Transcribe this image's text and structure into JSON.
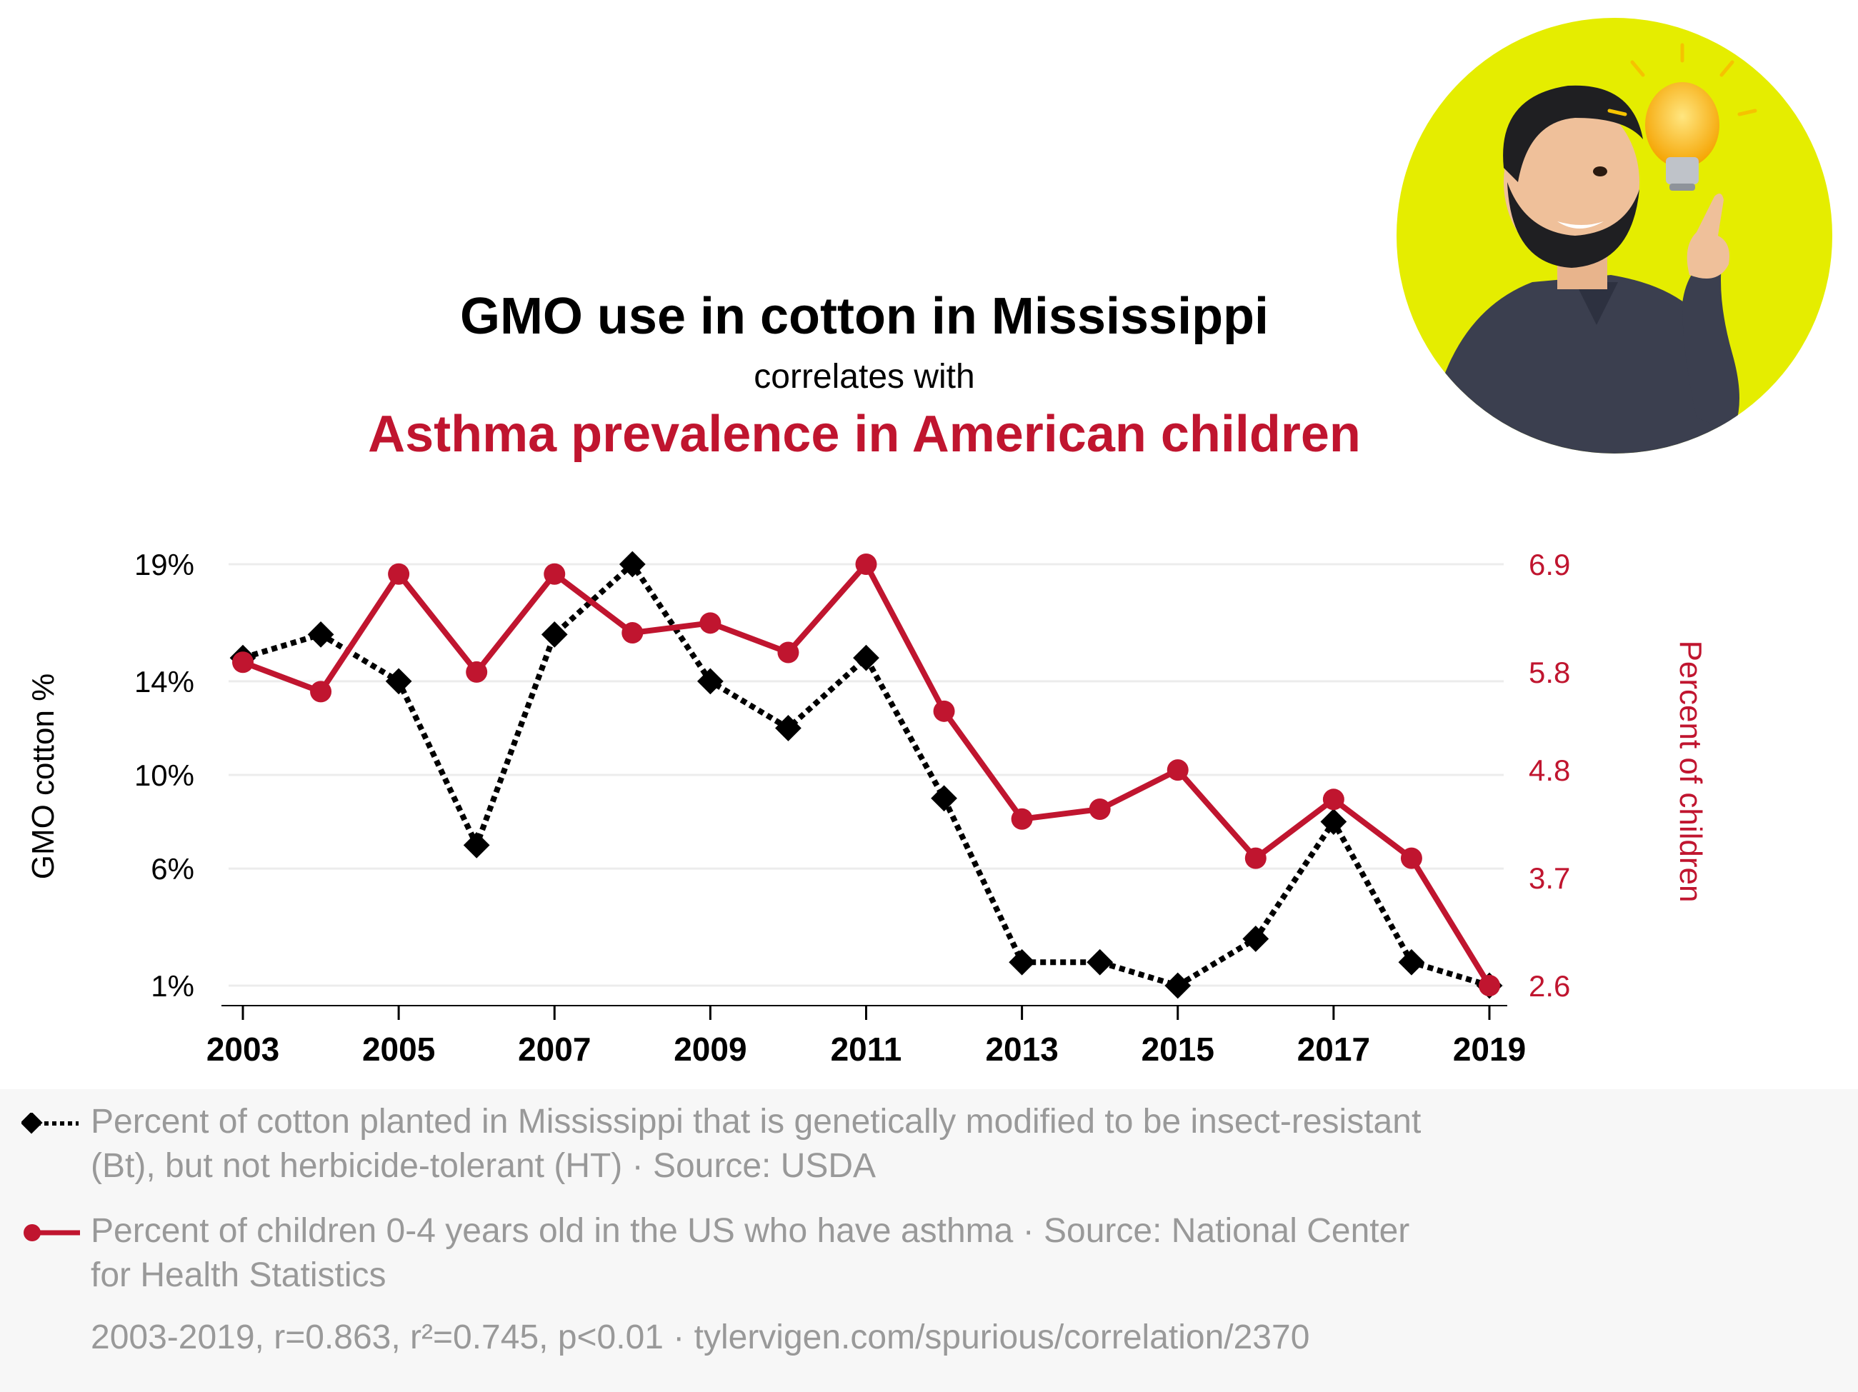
{
  "header": {
    "title": "GMO use in cotton in Mississippi",
    "connector": "correlates with",
    "subtitle": "Asthma prevalence in American children"
  },
  "chart_data": {
    "type": "line",
    "x": [
      2003,
      2004,
      2005,
      2006,
      2007,
      2008,
      2009,
      2010,
      2011,
      2012,
      2013,
      2014,
      2015,
      2016,
      2017,
      2018,
      2019
    ],
    "x_tick_labels": [
      "2003",
      "2005",
      "2007",
      "2009",
      "2011",
      "2013",
      "2015",
      "2017",
      "2019"
    ],
    "y_left": {
      "label": "GMO cotton %",
      "ticks": [
        1,
        6,
        10,
        14,
        19
      ],
      "tick_labels": [
        "1%",
        "6%",
        "10%",
        "14%",
        "19%"
      ],
      "range": [
        1,
        19
      ]
    },
    "y_right": {
      "label": "Percent of children",
      "ticks": [
        2.6,
        3.7,
        4.8,
        5.8,
        6.9
      ],
      "tick_labels": [
        "2.6",
        "3.7",
        "4.8",
        "5.8",
        "6.9"
      ],
      "range": [
        2.6,
        6.9
      ]
    },
    "series": [
      {
        "name": "Percent of cotton planted in Mississippi that is genetically modified to be insect-resistant (Bt), but not herbicide-tolerant (HT) · Source: USDA",
        "axis": "left",
        "color": "#000000",
        "style": "dotted",
        "marker": "diamond",
        "values": [
          15,
          16,
          14,
          7,
          16,
          19,
          14,
          12,
          15,
          9,
          2,
          2,
          1,
          3,
          8,
          2,
          1
        ]
      },
      {
        "name": "Percent of children 0-4 years old in the US who have asthma · Source: National Center for Health Statistics",
        "axis": "right",
        "color": "#c0152f",
        "style": "solid",
        "marker": "circle",
        "values": [
          5.9,
          5.6,
          6.8,
          5.8,
          6.8,
          6.2,
          6.3,
          6.0,
          6.9,
          5.4,
          4.3,
          4.4,
          4.8,
          3.9,
          4.5,
          3.9,
          2.6
        ]
      }
    ],
    "grid": true
  },
  "legend": {
    "gmo": "Percent of cotton planted in Mississippi that is genetically modified to be insect-resistant (Bt), but not herbicide-tolerant (HT) · Source: USDA",
    "asthma": "Percent of children 0-4 years old in the US who have asthma · Source: National Center for Health Statistics"
  },
  "stats": "2003-2019, r=0.863, r²=0.745, p<0.01 · tylervigen.com/spurious/correlation/2370",
  "colors": {
    "gmo": "#000000",
    "asthma": "#c0152f",
    "muted_text": "#999999",
    "avatar_bg": "#e5ed00"
  },
  "avatar_icon": "bearded-man-lightbulb-icon"
}
